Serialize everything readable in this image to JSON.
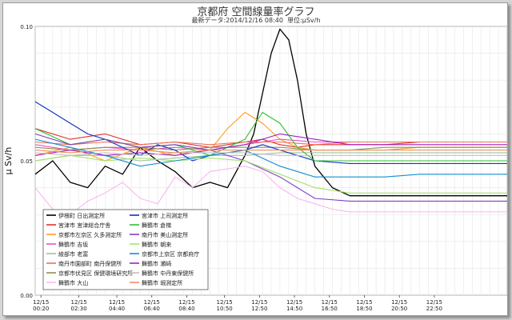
{
  "header": {
    "title": "京都府 空間線量率グラフ",
    "subtitle_prefix": "最新データ:",
    "latest": "2014/12/16 08:40",
    "unit_prefix": "単位:",
    "unit": "μSv/h"
  },
  "chart_data": {
    "type": "line",
    "ylabel": "μ Sv/h",
    "ylim": [
      0.0,
      0.1
    ],
    "yticks": [
      {
        "label": "0.10",
        "value": 0.1
      },
      {
        "label": "0.05",
        "value": 0.05
      },
      {
        "label": "0.00",
        "value": 0.0
      }
    ],
    "x_range_hours": [
      0,
      27
    ],
    "x_ticks": [
      {
        "label": "12/15 00:20",
        "h": 0.33
      },
      {
        "label": "12/15 02:30",
        "h": 2.5
      },
      {
        "label": "12/15 04:40",
        "h": 4.67
      },
      {
        "label": "12/15 06:40",
        "h": 6.67
      },
      {
        "label": "12/15 08:40",
        "h": 8.67
      },
      {
        "label": "12/15 10:50",
        "h": 10.83
      },
      {
        "label": "12/15 12:50",
        "h": 12.83
      },
      {
        "label": "12/15 14:50",
        "h": 14.83
      },
      {
        "label": "12/15 16:50",
        "h": 16.83
      },
      {
        "label": "12/15 18:50",
        "h": 18.83
      },
      {
        "label": "12/15 20:50",
        "h": 20.83
      },
      {
        "label": "12/15 22:50",
        "h": 22.83
      }
    ],
    "grid": true,
    "legend_position": "bottom-left",
    "series": [
      {
        "name": "伊根町 日出測定所",
        "color": "#000000",
        "x": [
          0,
          1,
          2,
          3,
          4,
          5,
          6,
          7,
          8,
          9,
          10,
          11,
          12,
          12.5,
          13,
          13.5,
          14,
          14.5,
          15,
          15.5,
          16,
          17,
          18,
          20,
          22,
          24,
          26,
          27
        ],
        "y": [
          0.045,
          0.05,
          0.042,
          0.04,
          0.048,
          0.045,
          0.055,
          0.05,
          0.046,
          0.04,
          0.042,
          0.04,
          0.052,
          0.06,
          0.075,
          0.09,
          0.099,
          0.095,
          0.08,
          0.06,
          0.048,
          0.04,
          0.037,
          0.037,
          0.037,
          0.037,
          0.037,
          0.037
        ]
      },
      {
        "name": "宮津市 宮津総合庁舎",
        "color": "#e03030",
        "x": [
          0,
          2,
          4,
          6,
          8,
          10,
          12,
          13,
          14,
          15,
          16,
          18,
          20,
          22,
          24,
          27
        ],
        "y": [
          0.062,
          0.058,
          0.06,
          0.056,
          0.057,
          0.055,
          0.057,
          0.058,
          0.056,
          0.055,
          0.056,
          0.056,
          0.056,
          0.057,
          0.057,
          0.057
        ]
      },
      {
        "name": "京都市左京区 久多測定所",
        "color": "#ff9d1e",
        "x": [
          0,
          2,
          4,
          6,
          8,
          10,
          11,
          12,
          13,
          14,
          15,
          16,
          18,
          20,
          22,
          24,
          27
        ],
        "y": [
          0.052,
          0.055,
          0.05,
          0.055,
          0.052,
          0.054,
          0.062,
          0.068,
          0.064,
          0.058,
          0.055,
          0.054,
          0.054,
          0.054,
          0.055,
          0.055,
          0.055
        ]
      },
      {
        "name": "舞鶴市 吉坂",
        "color": "#f050c8",
        "x": [
          0,
          2,
          4,
          6,
          8,
          10,
          12,
          14,
          16,
          18,
          20,
          22,
          24,
          27
        ],
        "y": [
          0.056,
          0.054,
          0.055,
          0.054,
          0.055,
          0.054,
          0.056,
          0.058,
          0.057,
          0.057,
          0.057,
          0.057,
          0.057,
          0.057
        ]
      },
      {
        "name": "綾部市 老富",
        "color": "#a0c0a0",
        "x": [
          0,
          2,
          4,
          6,
          8,
          10,
          12,
          14,
          16,
          18,
          20,
          22,
          24,
          27
        ],
        "y": [
          0.05,
          0.052,
          0.052,
          0.05,
          0.051,
          0.052,
          0.052,
          0.053,
          0.053,
          0.053,
          0.053,
          0.053,
          0.053,
          0.053
        ]
      },
      {
        "name": "南丹市園部町 南丹保健所",
        "color": "#f07050",
        "x": [
          0,
          2,
          4,
          6,
          8,
          10,
          12,
          14,
          16,
          18,
          20,
          22,
          24,
          27
        ],
        "y": [
          0.057,
          0.056,
          0.057,
          0.056,
          0.057,
          0.056,
          0.057,
          0.057,
          0.056,
          0.057,
          0.057,
          0.057,
          0.057,
          0.057
        ]
      },
      {
        "name": "京都市伏見区 保健環境研究所",
        "color": "#909050",
        "x": [
          0,
          2,
          4,
          6,
          8,
          10,
          12,
          14,
          16,
          18,
          20,
          22,
          24,
          27
        ],
        "y": [
          0.055,
          0.054,
          0.055,
          0.055,
          0.054,
          0.055,
          0.055,
          0.055,
          0.054,
          0.054,
          0.055,
          0.055,
          0.055,
          0.055
        ]
      },
      {
        "name": "舞鶴市 大山",
        "color": "#f8b8f0",
        "x": [
          0,
          1,
          2,
          3,
          4,
          5,
          6,
          7,
          8,
          9,
          10,
          12,
          13,
          14,
          15,
          16,
          17,
          18,
          20,
          22,
          24,
          27
        ],
        "y": [
          0.04,
          0.032,
          0.03,
          0.035,
          0.038,
          0.042,
          0.036,
          0.034,
          0.044,
          0.04,
          0.046,
          0.048,
          0.046,
          0.04,
          0.036,
          0.034,
          0.032,
          0.031,
          0.031,
          0.031,
          0.031,
          0.031
        ]
      },
      {
        "name": "宮津市 上司測定所",
        "color": "#1030c0",
        "x": [
          0,
          1,
          2,
          3,
          4,
          5,
          6,
          7,
          8,
          9,
          10,
          12,
          13,
          14,
          15,
          16,
          18,
          20,
          22,
          24,
          27
        ],
        "y": [
          0.072,
          0.068,
          0.064,
          0.06,
          0.058,
          0.055,
          0.052,
          0.056,
          0.054,
          0.05,
          0.052,
          0.054,
          0.056,
          0.054,
          0.052,
          0.05,
          0.049,
          0.049,
          0.049,
          0.049,
          0.049
        ]
      },
      {
        "name": "舞鶴市 倉梯",
        "color": "#30c030",
        "x": [
          0,
          2,
          4,
          6,
          8,
          10,
          12,
          13,
          14,
          15,
          16,
          18,
          20,
          22,
          24,
          27
        ],
        "y": [
          0.062,
          0.056,
          0.058,
          0.055,
          0.056,
          0.052,
          0.058,
          0.068,
          0.064,
          0.055,
          0.05,
          0.05,
          0.05,
          0.05,
          0.05,
          0.05
        ]
      },
      {
        "name": "南丹市 美山測定所",
        "color": "#8040c0",
        "x": [
          0,
          2,
          4,
          6,
          8,
          10,
          12,
          14,
          15,
          16,
          18,
          20,
          22,
          24,
          27
        ],
        "y": [
          0.06,
          0.056,
          0.058,
          0.055,
          0.056,
          0.054,
          0.05,
          0.044,
          0.04,
          0.036,
          0.035,
          0.035,
          0.035,
          0.035,
          0.035
        ]
      },
      {
        "name": "舞鶴市 朝来",
        "color": "#a6e070",
        "x": [
          0,
          2,
          4,
          6,
          8,
          10,
          12,
          14,
          16,
          18,
          20,
          22,
          24,
          27
        ],
        "y": [
          0.05,
          0.052,
          0.05,
          0.051,
          0.05,
          0.051,
          0.05,
          0.045,
          0.04,
          0.038,
          0.038,
          0.038,
          0.038,
          0.038
        ]
      },
      {
        "name": "京都市上京区 京都府庁",
        "color": "#1090d0",
        "x": [
          0,
          2,
          4,
          6,
          8,
          10,
          12,
          14,
          16,
          18,
          20,
          22,
          24,
          27
        ],
        "y": [
          0.058,
          0.055,
          0.052,
          0.048,
          0.05,
          0.052,
          0.054,
          0.048,
          0.044,
          0.044,
          0.044,
          0.045,
          0.045,
          0.045
        ]
      },
      {
        "name": "舞鶴市 瀬崎",
        "color": "#a020c0",
        "x": [
          0,
          2,
          4,
          6,
          8,
          10,
          12,
          14,
          16,
          18,
          20,
          22,
          24,
          27
        ],
        "y": [
          0.052,
          0.054,
          0.052,
          0.053,
          0.052,
          0.054,
          0.056,
          0.06,
          0.058,
          0.056,
          0.056,
          0.056,
          0.056,
          0.056
        ]
      },
      {
        "name": "舞鶴市 中丹東保健所",
        "color": "#c0c0c0",
        "x": [
          0,
          2,
          4,
          6,
          8,
          10,
          12,
          14,
          16,
          18,
          20,
          22,
          24,
          27
        ],
        "y": [
          0.053,
          0.052,
          0.053,
          0.052,
          0.053,
          0.053,
          0.053,
          0.052,
          0.052,
          0.052,
          0.052,
          0.052,
          0.052,
          0.052
        ]
      },
      {
        "name": "舞鶴市 堀測定所",
        "color": "#f09060",
        "x": [
          0,
          2,
          4,
          6,
          8,
          10,
          12,
          14,
          16,
          18,
          20,
          22,
          24,
          27
        ],
        "y": [
          0.054,
          0.053,
          0.054,
          0.054,
          0.053,
          0.054,
          0.054,
          0.054,
          0.054,
          0.054,
          0.054,
          0.054,
          0.054,
          0.054
        ]
      }
    ]
  }
}
